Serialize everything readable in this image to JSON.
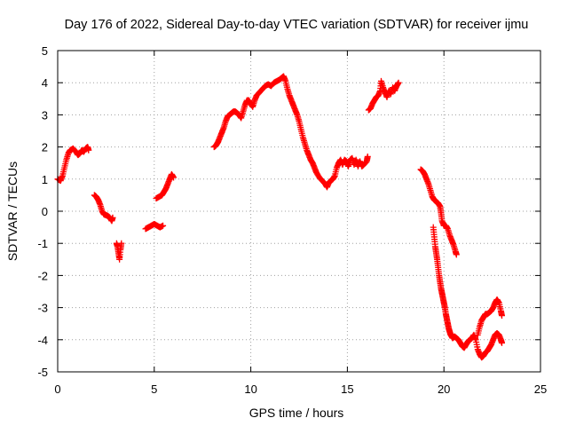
{
  "chart_data": {
    "type": "scatter",
    "title": "Day 176 of 2022, Sidereal Day-to-day VTEC variation (SDTVAR) for receiver ijmu",
    "xlabel": "GPS time / hours",
    "ylabel": "SDTVAR / TECUs",
    "xlim": [
      0,
      25
    ],
    "ylim": [
      -5,
      5
    ],
    "xticks": [
      0,
      5,
      10,
      15,
      20,
      25
    ],
    "yticks": [
      -5,
      -4,
      -3,
      -2,
      -1,
      0,
      1,
      2,
      3,
      4,
      5
    ],
    "xtick_labels": [
      "0",
      "5",
      "10",
      "15",
      "20",
      "25"
    ],
    "ytick_labels": [
      "-5",
      "-4",
      "-3",
      "-2",
      "-1",
      "0",
      "1",
      "2",
      "3",
      "4",
      "5"
    ],
    "grid": true,
    "marker": "plus",
    "series": [
      {
        "name": "SDTVAR",
        "color": "#ff0000",
        "segments": [
          [
            [
              0.0,
              1.0
            ],
            [
              0.15,
              0.95
            ],
            [
              0.25,
              1.1
            ],
            [
              0.35,
              1.35
            ],
            [
              0.45,
              1.6
            ],
            [
              0.55,
              1.8
            ],
            [
              0.65,
              1.9
            ],
            [
              0.8,
              1.95
            ],
            [
              0.95,
              1.85
            ],
            [
              1.05,
              1.75
            ],
            [
              1.15,
              1.8
            ],
            [
              1.25,
              1.9
            ],
            [
              1.35,
              1.85
            ],
            [
              1.45,
              1.95
            ],
            [
              1.55,
              2.0
            ],
            [
              1.6,
              1.9
            ]
          ],
          [
            [
              1.9,
              0.5
            ],
            [
              2.0,
              0.45
            ],
            [
              2.1,
              0.35
            ],
            [
              2.2,
              0.2
            ],
            [
              2.3,
              0.0
            ],
            [
              2.4,
              -0.1
            ],
            [
              2.5,
              -0.12
            ],
            [
              2.6,
              -0.15
            ],
            [
              2.7,
              -0.2
            ],
            [
              2.8,
              -0.3
            ],
            [
              2.85,
              -0.2
            ]
          ],
          [
            [
              3.05,
              -1.0
            ],
            [
              3.1,
              -1.1
            ],
            [
              3.15,
              -1.3
            ],
            [
              3.2,
              -1.5
            ],
            [
              3.25,
              -1.2
            ],
            [
              3.3,
              -1.0
            ]
          ],
          [
            [
              4.55,
              -0.55
            ],
            [
              4.7,
              -0.5
            ],
            [
              4.85,
              -0.45
            ],
            [
              5.0,
              -0.4
            ],
            [
              5.15,
              -0.45
            ],
            [
              5.3,
              -0.5
            ],
            [
              5.45,
              -0.45
            ]
          ],
          [
            [
              5.1,
              0.4
            ],
            [
              5.25,
              0.45
            ],
            [
              5.4,
              0.5
            ],
            [
              5.5,
              0.6
            ],
            [
              5.6,
              0.7
            ],
            [
              5.7,
              0.85
            ],
            [
              5.8,
              1.0
            ],
            [
              5.9,
              1.15
            ],
            [
              6.0,
              1.05
            ]
          ],
          [
            [
              8.1,
              2.0
            ],
            [
              8.2,
              2.05
            ],
            [
              8.3,
              2.15
            ],
            [
              8.4,
              2.3
            ],
            [
              8.5,
              2.45
            ],
            [
              8.6,
              2.6
            ],
            [
              8.7,
              2.8
            ],
            [
              8.8,
              2.95
            ],
            [
              8.9,
              3.0
            ],
            [
              9.0,
              3.05
            ],
            [
              9.1,
              3.1
            ],
            [
              9.2,
              3.1
            ],
            [
              9.3,
              3.05
            ],
            [
              9.4,
              3.0
            ],
            [
              9.5,
              2.9
            ],
            [
              9.6,
              3.1
            ],
            [
              9.7,
              3.3
            ],
            [
              9.8,
              3.45
            ],
            [
              9.9,
              3.45
            ],
            [
              10.0,
              3.35
            ],
            [
              10.1,
              3.25
            ],
            [
              10.2,
              3.45
            ],
            [
              10.3,
              3.6
            ],
            [
              10.45,
              3.7
            ],
            [
              10.6,
              3.8
            ],
            [
              10.75,
              3.9
            ],
            [
              10.9,
              3.95
            ],
            [
              11.05,
              3.9
            ],
            [
              11.2,
              4.0
            ],
            [
              11.35,
              4.05
            ],
            [
              11.5,
              4.1
            ],
            [
              11.6,
              4.15
            ],
            [
              11.7,
              4.2
            ],
            [
              11.8,
              4.05
            ],
            [
              11.9,
              3.8
            ],
            [
              12.0,
              3.6
            ],
            [
              12.1,
              3.45
            ],
            [
              12.2,
              3.3
            ],
            [
              12.3,
              3.15
            ],
            [
              12.4,
              3.0
            ],
            [
              12.5,
              2.8
            ],
            [
              12.6,
              2.55
            ],
            [
              12.7,
              2.3
            ],
            [
              12.8,
              2.1
            ],
            [
              12.9,
              1.9
            ],
            [
              13.0,
              1.75
            ],
            [
              13.1,
              1.6
            ],
            [
              13.2,
              1.5
            ],
            [
              13.3,
              1.35
            ],
            [
              13.4,
              1.2
            ],
            [
              13.55,
              1.05
            ],
            [
              13.7,
              0.95
            ],
            [
              13.85,
              0.85
            ],
            [
              13.95,
              0.75
            ],
            [
              14.05,
              0.9
            ],
            [
              14.15,
              0.95
            ],
            [
              14.25,
              1.0
            ],
            [
              14.35,
              1.1
            ],
            [
              14.45,
              1.35
            ],
            [
              14.55,
              1.5
            ],
            [
              14.65,
              1.6
            ],
            [
              14.75,
              1.45
            ],
            [
              14.85,
              1.6
            ],
            [
              14.95,
              1.55
            ],
            [
              15.05,
              1.4
            ],
            [
              15.15,
              1.6
            ],
            [
              15.25,
              1.65
            ],
            [
              15.35,
              1.45
            ],
            [
              15.45,
              1.6
            ],
            [
              15.55,
              1.4
            ],
            [
              15.65,
              1.55
            ],
            [
              15.75,
              1.4
            ],
            [
              15.85,
              1.45
            ],
            [
              16.0,
              1.55
            ],
            [
              16.05,
              1.7
            ]
          ],
          [
            [
              16.1,
              3.15
            ],
            [
              16.2,
              3.2
            ],
            [
              16.3,
              3.35
            ],
            [
              16.4,
              3.45
            ],
            [
              16.5,
              3.55
            ],
            [
              16.6,
              3.6
            ],
            [
              16.7,
              3.75
            ],
            [
              16.75,
              4.05
            ],
            [
              16.85,
              3.85
            ],
            [
              16.95,
              3.7
            ],
            [
              17.05,
              3.55
            ],
            [
              17.15,
              3.75
            ],
            [
              17.25,
              3.65
            ],
            [
              17.35,
              3.85
            ],
            [
              17.45,
              3.75
            ],
            [
              17.55,
              3.9
            ],
            [
              17.65,
              4.0
            ]
          ],
          [
            [
              18.8,
              1.3
            ],
            [
              18.9,
              1.25
            ],
            [
              19.0,
              1.15
            ],
            [
              19.1,
              1.0
            ],
            [
              19.2,
              0.85
            ],
            [
              19.3,
              0.65
            ],
            [
              19.4,
              0.45
            ],
            [
              19.5,
              0.35
            ],
            [
              19.6,
              0.3
            ],
            [
              19.7,
              0.25
            ],
            [
              19.8,
              0.15
            ],
            [
              19.85,
              -0.05
            ],
            [
              19.9,
              -0.3
            ],
            [
              20.0,
              -0.45
            ],
            [
              20.1,
              -0.45
            ],
            [
              20.2,
              -0.55
            ],
            [
              20.3,
              -0.75
            ],
            [
              20.4,
              -0.9
            ],
            [
              20.5,
              -1.05
            ],
            [
              20.6,
              -1.25
            ],
            [
              20.65,
              -1.35
            ]
          ],
          [
            [
              19.45,
              -0.5
            ],
            [
              19.5,
              -0.8
            ],
            [
              19.55,
              -1.1
            ],
            [
              19.6,
              -1.3
            ],
            [
              19.65,
              -1.5
            ],
            [
              19.7,
              -1.75
            ],
            [
              19.75,
              -2.0
            ],
            [
              19.8,
              -2.2
            ],
            [
              19.85,
              -2.4
            ],
            [
              19.9,
              -2.55
            ],
            [
              19.95,
              -2.7
            ],
            [
              20.0,
              -2.85
            ],
            [
              20.05,
              -3.0
            ],
            [
              20.1,
              -3.2
            ],
            [
              20.15,
              -3.35
            ],
            [
              20.2,
              -3.5
            ],
            [
              20.25,
              -3.65
            ],
            [
              20.3,
              -3.75
            ],
            [
              20.35,
              -3.85
            ],
            [
              20.45,
              -3.95
            ],
            [
              20.55,
              -3.9
            ],
            [
              20.65,
              -3.95
            ],
            [
              20.75,
              -4.0
            ],
            [
              20.85,
              -4.1
            ],
            [
              20.95,
              -4.2
            ],
            [
              21.05,
              -4.25
            ],
            [
              21.15,
              -4.15
            ],
            [
              21.25,
              -4.05
            ],
            [
              21.35,
              -4.0
            ],
            [
              21.45,
              -3.95
            ],
            [
              21.55,
              -3.85
            ],
            [
              21.65,
              -4.0
            ],
            [
              21.75,
              -4.3
            ],
            [
              21.85,
              -4.45
            ],
            [
              21.95,
              -4.55
            ],
            [
              22.05,
              -4.5
            ],
            [
              22.15,
              -4.4
            ],
            [
              22.25,
              -4.35
            ],
            [
              22.35,
              -4.25
            ],
            [
              22.45,
              -4.15
            ],
            [
              22.55,
              -4.0
            ],
            [
              22.65,
              -3.85
            ],
            [
              22.75,
              -3.8
            ],
            [
              22.85,
              -3.85
            ],
            [
              22.95,
              -4.0
            ],
            [
              23.0,
              -4.1
            ]
          ],
          [
            [
              21.75,
              -3.85
            ],
            [
              21.85,
              -3.6
            ],
            [
              21.95,
              -3.4
            ],
            [
              22.05,
              -3.3
            ],
            [
              22.15,
              -3.2
            ],
            [
              22.25,
              -3.2
            ],
            [
              22.35,
              -3.15
            ],
            [
              22.45,
              -3.1
            ],
            [
              22.55,
              -3.0
            ],
            [
              22.65,
              -2.85
            ],
            [
              22.75,
              -2.75
            ],
            [
              22.85,
              -2.85
            ],
            [
              22.95,
              -3.1
            ],
            [
              23.0,
              -3.25
            ]
          ]
        ]
      }
    ]
  }
}
